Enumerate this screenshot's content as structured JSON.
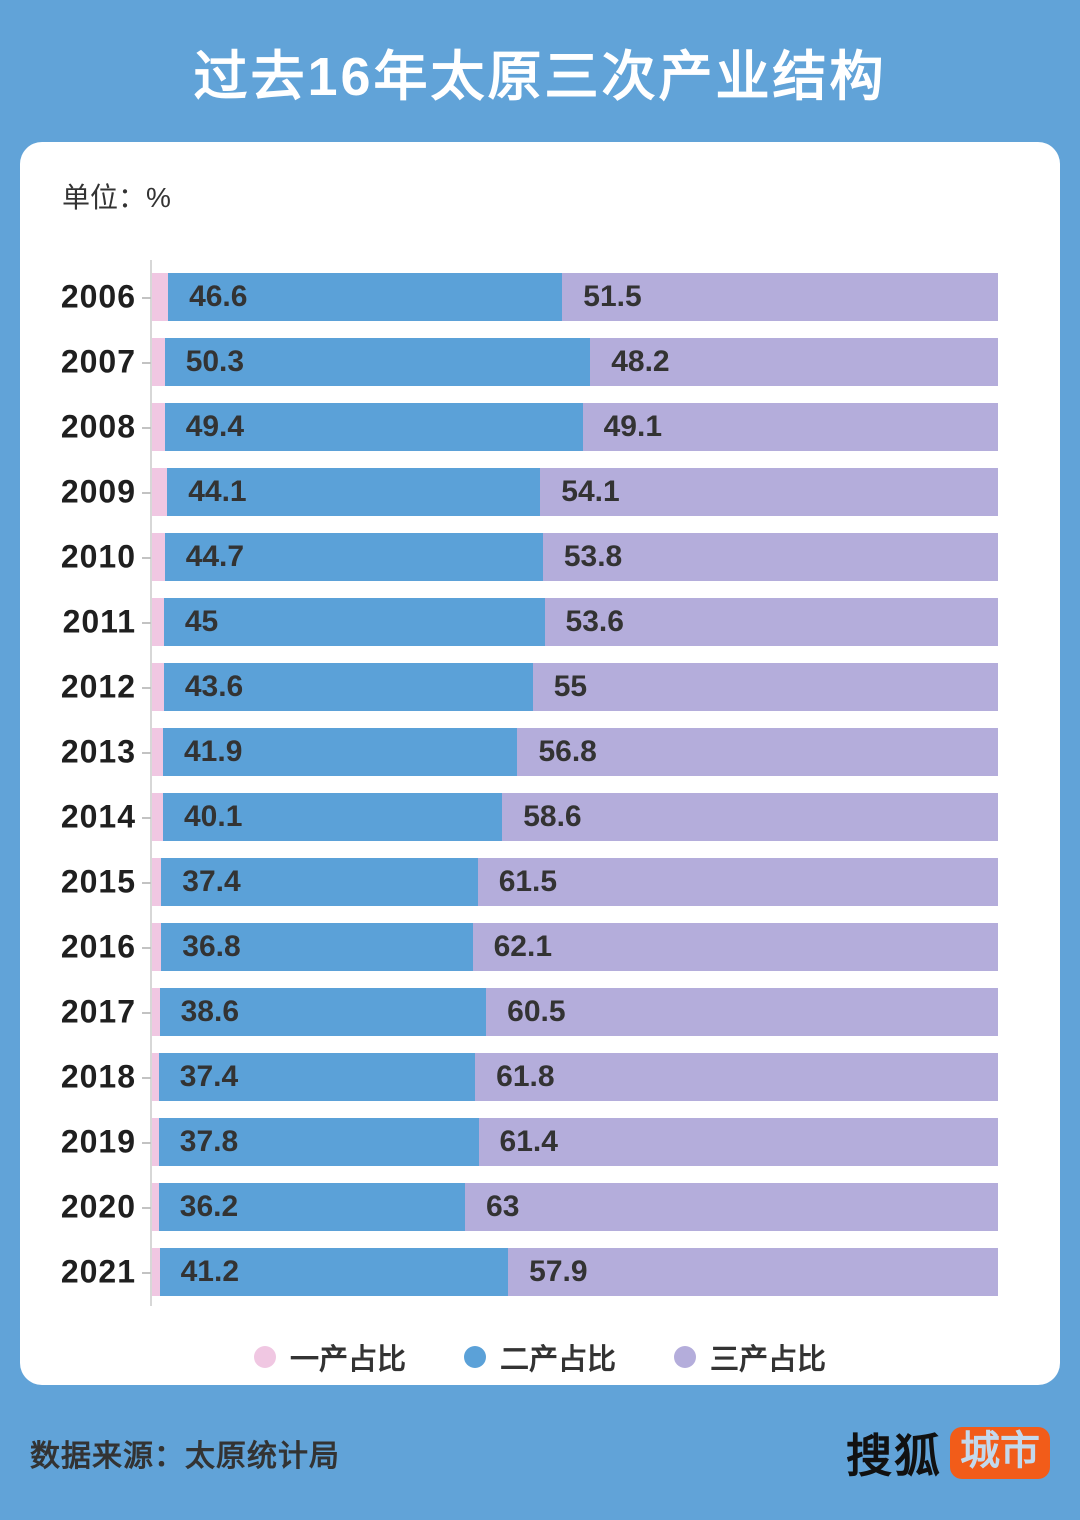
{
  "header": {
    "title": "过去16年太原三次产业结构"
  },
  "unit_label": "单位：%",
  "colors": {
    "background_blue": "#61a3d8",
    "card_white": "#ffffff",
    "primary_pink": "#f0c7e2",
    "secondary_blue": "#5ba1d8",
    "tertiary_purple": "#b4addb",
    "label_dark": "#333333",
    "logo_orange": "#f25c19"
  },
  "legend": {
    "items": [
      {
        "label": "一产占比",
        "color": "#f0c7e2"
      },
      {
        "label": "二产占比",
        "color": "#5ba1d8"
      },
      {
        "label": "三产占比",
        "color": "#b4addb"
      }
    ]
  },
  "footer": {
    "source": "数据来源：太原统计局",
    "logo_text": "搜狐",
    "logo_badge_text": "城市"
  },
  "chart_data": {
    "type": "bar",
    "orientation": "horizontal",
    "stacked": true,
    "unit": "%",
    "xlim": [
      0,
      100
    ],
    "title": "过去16年太原三次产业结构",
    "categories": [
      "2006",
      "2007",
      "2008",
      "2009",
      "2010",
      "2011",
      "2012",
      "2013",
      "2014",
      "2015",
      "2016",
      "2017",
      "2018",
      "2019",
      "2020",
      "2021"
    ],
    "series": [
      {
        "name": "一产占比",
        "color": "#f0c7e2",
        "labels_shown": false,
        "values": [
          1.9,
          1.5,
          1.5,
          1.8,
          1.5,
          1.4,
          1.4,
          1.3,
          1.3,
          1.1,
          1.1,
          0.9,
          0.8,
          0.8,
          0.8,
          0.9
        ],
        "display_labels": [
          "",
          "",
          "",
          "",
          "",
          "",
          "",
          "",
          "",
          "",
          "",
          "",
          "",
          "",
          "",
          ""
        ]
      },
      {
        "name": "二产占比",
        "color": "#5ba1d8",
        "labels_shown": true,
        "values": [
          46.6,
          50.3,
          49.4,
          44.1,
          44.7,
          45,
          43.6,
          41.9,
          40.1,
          37.4,
          36.8,
          38.6,
          37.4,
          37.8,
          36.2,
          41.2
        ],
        "display_labels": [
          "46.6",
          "50.3",
          "49.4",
          "44.1",
          "44.7",
          "45",
          "43.6",
          "41.9",
          "40.1",
          "37.4",
          "36.8",
          "38.6",
          "37.4",
          "37.8",
          "36.2",
          "41.2"
        ]
      },
      {
        "name": "三产占比",
        "color": "#b4addb",
        "labels_shown": true,
        "values": [
          51.5,
          48.2,
          49.1,
          54.1,
          53.8,
          53.6,
          55,
          56.8,
          58.6,
          61.5,
          62.1,
          60.5,
          61.8,
          61.4,
          63,
          57.9
        ],
        "display_labels": [
          "51.5",
          "48.2",
          "49.1",
          "54.1",
          "53.8",
          "53.6",
          "55",
          "56.8",
          "58.6",
          "61.5",
          "62.1",
          "60.5",
          "61.8",
          "61.4",
          "63",
          "57.9"
        ]
      }
    ],
    "legend_position": "bottom"
  }
}
